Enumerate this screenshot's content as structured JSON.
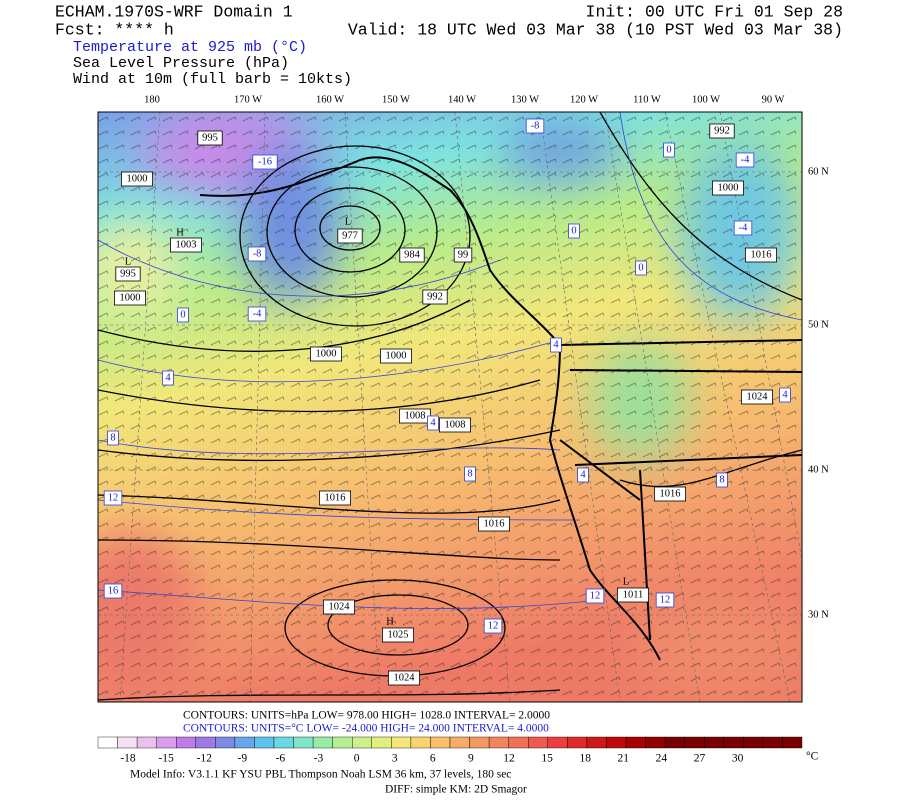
{
  "header": {
    "model": "ECHAM.1970S-WRF Domain 1",
    "forecast": "Fcst: **** h",
    "fields": [
      "Temperature at 925 mb (°C)",
      "Sea Level Pressure (hPa)",
      "Wind at 10m (full barb = 10kts)"
    ],
    "init": "Init: 00 UTC Fri 01 Sep 28",
    "valid": "Valid: 18 UTC Wed 03 Mar 38 (10 PST Wed 03 Mar 38)"
  },
  "map": {
    "longitudes": [
      "180",
      "170 W",
      "160 W",
      "150 W",
      "140 W",
      "130 W",
      "120 W",
      "110 W",
      "100 W",
      "90 W"
    ],
    "latitudes": [
      "60 N",
      "50 N",
      "40 N",
      "30 N"
    ],
    "pressure_labels": [
      "995",
      "1000",
      "H",
      "1003",
      "L",
      "995",
      "1000",
      "L",
      "977",
      "984",
      "992",
      "99",
      "1000",
      "1000",
      "1008",
      "1008",
      "1016",
      "1016",
      "1024",
      "H",
      "1025",
      "1024",
      "992",
      "1000",
      "1016",
      "1024",
      "1016",
      "L",
      "1011"
    ],
    "temperature_labels": [
      "-16",
      "-8",
      "-4",
      "0",
      "4",
      "8",
      "12",
      "16",
      "12",
      "8",
      "4",
      "4",
      "0",
      "-8",
      "0",
      "-4",
      "-4",
      "0",
      "4",
      "8",
      "12",
      "12",
      "4"
    ]
  },
  "footer": {
    "contours_pressure": "CONTOURS:  UNITS=hPa  LOW=  978.00      HIGH=  1028.0      INTERVAL=    2.0000",
    "contours_temperature": "CONTOURS:  UNITS=°C  LOW= -24.000     HIGH=  24.000     INTERVAL=   4.0000",
    "colorbar_labels": [
      "-18",
      "-15",
      "-12",
      "-9",
      "-6",
      "-3",
      "0",
      "3",
      "6",
      "9",
      "12",
      "15",
      "18",
      "21",
      "24",
      "27",
      "30"
    ],
    "colorbar_unit": "°C",
    "model_info": "Model Info: V3.1.1   KF     YSU PBL  Thompson    Noah LSM  36 km,   37 levels,  180 sec",
    "diff": "DIFF: simple KM: 2D Smagor"
  }
}
